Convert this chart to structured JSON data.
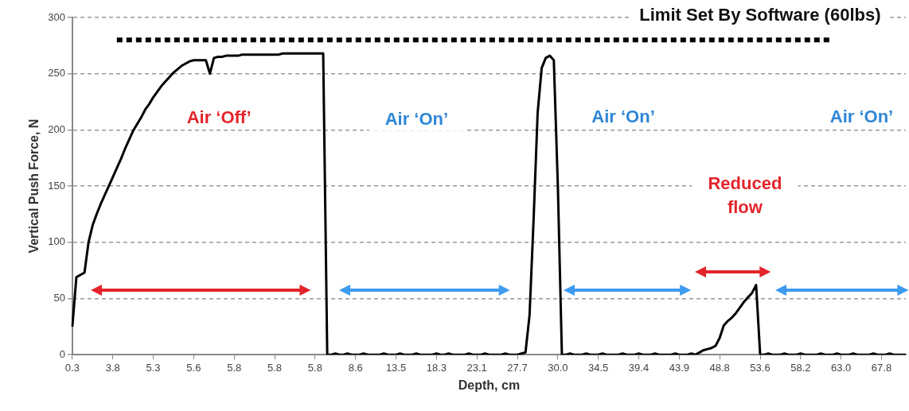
{
  "chart_data": {
    "type": "line",
    "title": "Limit Set By Software (60lbs)",
    "xlabel": "Depth, cm",
    "ylabel": "Vertical Push Force, N",
    "annotations": [
      "Air ‘Off’",
      "Air ‘On’",
      "Air ‘On’",
      "Reduced flow",
      "Air ‘On’"
    ],
    "categories": [
      "0.3",
      null,
      null,
      null,
      null,
      null,
      null,
      null,
      null,
      null,
      "3.8",
      null,
      null,
      null,
      null,
      null,
      null,
      null,
      null,
      null,
      "5.3",
      null,
      null,
      null,
      null,
      null,
      null,
      null,
      null,
      null,
      "5.6",
      null,
      null,
      null,
      null,
      null,
      null,
      null,
      null,
      null,
      "5.8",
      null,
      null,
      null,
      null,
      null,
      null,
      null,
      null,
      null,
      "5.8",
      null,
      null,
      null,
      null,
      null,
      null,
      null,
      null,
      null,
      "5.8",
      null,
      null,
      null,
      null,
      null,
      null,
      null,
      null,
      null,
      "8.6",
      null,
      null,
      null,
      null,
      null,
      null,
      null,
      null,
      null,
      "13.5",
      null,
      null,
      null,
      null,
      null,
      null,
      null,
      null,
      null,
      "18.3",
      null,
      null,
      null,
      null,
      null,
      null,
      null,
      null,
      null,
      "23.1",
      null,
      null,
      null,
      null,
      null,
      null,
      null,
      null,
      null,
      "27.7",
      null,
      null,
      null,
      null,
      null,
      null,
      null,
      null,
      null,
      "30.0",
      null,
      null,
      null,
      null,
      null,
      null,
      null,
      null,
      null,
      "34.5",
      null,
      null,
      null,
      null,
      null,
      null,
      null,
      null,
      null,
      "39.4",
      null,
      null,
      null,
      null,
      null,
      null,
      null,
      null,
      null,
      "43.9",
      null,
      null,
      null,
      null,
      null,
      null,
      null,
      null,
      null,
      "48.8",
      null,
      null,
      null,
      null,
      null,
      null,
      null,
      null,
      null,
      "53.6",
      null,
      null,
      null,
      null,
      null,
      null,
      null,
      null,
      null,
      "58.2",
      null,
      null,
      null,
      null,
      null,
      null,
      null,
      null,
      null,
      "63.0",
      null,
      null,
      null,
      null,
      null,
      null,
      null,
      null,
      null,
      "67.8",
      null,
      null,
      null,
      null,
      null,
      null
    ],
    "series": [
      {
        "color": "#000000",
        "line_style": "solid",
        "values": [
          25,
          69,
          71,
          73,
          100,
          115,
          125,
          134,
          142,
          150,
          158,
          166,
          174,
          183,
          191,
          199,
          205,
          211,
          218,
          223,
          229,
          234,
          239,
          243,
          247,
          251,
          254,
          257,
          259,
          261,
          262,
          262,
          262,
          262,
          250,
          264,
          265,
          265,
          266,
          266,
          266,
          266,
          267,
          267,
          267,
          267,
          267,
          267,
          267,
          267,
          267,
          267,
          268,
          268,
          268,
          268,
          268,
          268,
          268,
          268,
          268,
          268,
          268,
          0,
          0,
          1,
          0,
          0,
          1,
          0,
          0,
          0,
          1,
          0,
          0,
          0,
          0,
          1,
          0,
          0,
          0,
          1,
          0,
          0,
          0,
          1,
          0,
          0,
          0,
          0,
          1,
          0,
          0,
          1,
          0,
          0,
          0,
          0,
          1,
          0,
          0,
          0,
          1,
          0,
          0,
          0,
          0,
          1,
          0,
          0,
          0,
          1,
          2,
          35,
          120,
          215,
          255,
          264,
          266,
          262,
          150,
          0,
          0,
          1,
          0,
          0,
          0,
          1,
          0,
          0,
          0,
          1,
          0,
          0,
          0,
          0,
          1,
          0,
          0,
          0,
          1,
          0,
          0,
          0,
          1,
          0,
          0,
          0,
          0,
          1,
          0,
          0,
          0,
          1,
          0,
          2,
          4,
          5,
          6,
          8,
          15,
          26,
          30,
          33,
          37,
          42,
          47,
          51,
          55,
          62,
          0,
          0,
          1,
          0,
          0,
          0,
          1,
          0,
          0,
          0,
          1,
          0,
          0,
          0,
          0,
          1,
          0,
          0,
          0,
          1,
          0,
          0,
          0,
          1,
          0,
          0,
          0,
          0,
          1,
          0,
          0,
          0,
          1,
          0,
          0,
          0,
          0
        ]
      },
      {
        "color": "#000000",
        "line_style": "dashed",
        "values": [
          null,
          null,
          null,
          null,
          null,
          null,
          null,
          null,
          null,
          null,
          null,
          280,
          280,
          280,
          280,
          280,
          280,
          280,
          280,
          280,
          280,
          280,
          280,
          280,
          280,
          280,
          280,
          280,
          280,
          280,
          280,
          280,
          280,
          280,
          280,
          280,
          280,
          280,
          280,
          280,
          280,
          280,
          280,
          280,
          280,
          280,
          280,
          280,
          280,
          280,
          280,
          280,
          280,
          280,
          280,
          280,
          280,
          280,
          280,
          280,
          280,
          280,
          280,
          280,
          280,
          280,
          280,
          280,
          280,
          280,
          280,
          280,
          280,
          280,
          280,
          280,
          280,
          280,
          280,
          280,
          280,
          280,
          280,
          280,
          280,
          280,
          280,
          280,
          280,
          280,
          280,
          280,
          280,
          280,
          280,
          280,
          280,
          280,
          280,
          280,
          280,
          280,
          280,
          280,
          280,
          280,
          280,
          280,
          280,
          280,
          280,
          280,
          280,
          280,
          280,
          280,
          280,
          280,
          280,
          280,
          280,
          280,
          280,
          280,
          280,
          280,
          280,
          280,
          280,
          280,
          280,
          280,
          280,
          280,
          280,
          280,
          280,
          280,
          280,
          280,
          280,
          280,
          280,
          280,
          280,
          280,
          280,
          280,
          280,
          280,
          280,
          280,
          280,
          280,
          280,
          280,
          280,
          280,
          280,
          280,
          280,
          280,
          280,
          280,
          280,
          280,
          280,
          280,
          280,
          280,
          280,
          280,
          280,
          280,
          280,
          280,
          280,
          280,
          280,
          280,
          280,
          280,
          280,
          280,
          280,
          280,
          280,
          280,
          280,
          null,
          null,
          null,
          null,
          null,
          null,
          null,
          null,
          null,
          null,
          null,
          null,
          null,
          null,
          null,
          null,
          null,
          null
        ]
      }
    ],
    "ylim": [
      0,
      300
    ],
    "yticks": [
      0,
      50,
      100,
      150,
      200,
      250,
      300
    ],
    "grid": "y",
    "legend": false,
    "marker": "none"
  }
}
